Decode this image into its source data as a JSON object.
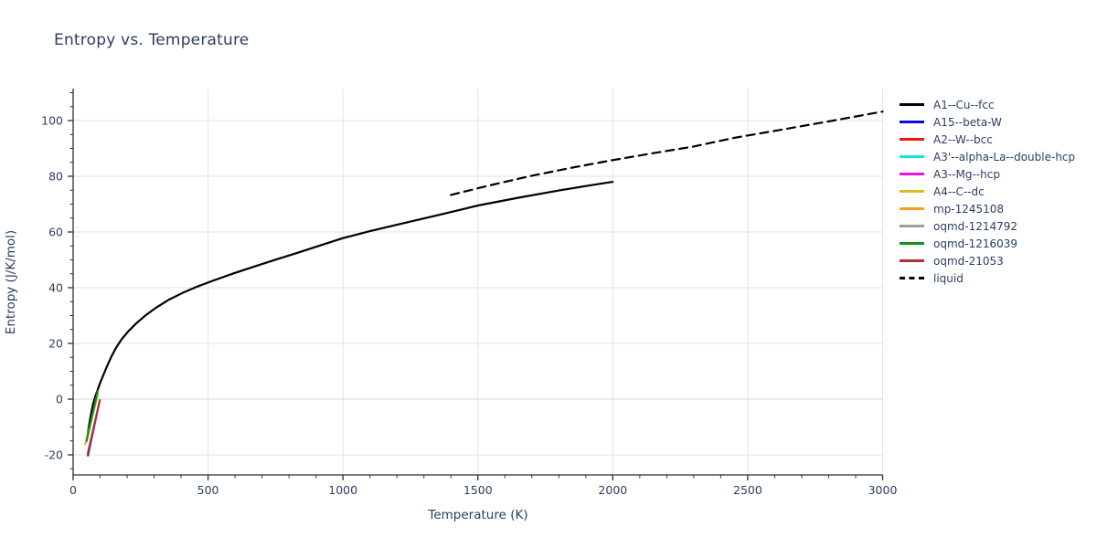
{
  "title": "Entropy vs. Temperature",
  "colors": {
    "text": "#2a3f5f",
    "grid": "#e2e2e2",
    "zeroline": "#d6d6d6",
    "axis_line": "#2f2f2f",
    "background": "#ffffff"
  },
  "axes": {
    "x": {
      "label": "Temperature (K)",
      "major_ticks": [
        0,
        500,
        1000,
        1500,
        2000,
        2500,
        3000
      ],
      "minor_step": 100,
      "range": [
        0,
        3000
      ]
    },
    "y": {
      "label": "Entropy (J/K/mol)",
      "major_ticks": [
        -20,
        0,
        20,
        40,
        60,
        80,
        100
      ],
      "minor_step": 5,
      "minor_range": [
        -25,
        110
      ]
    }
  },
  "chart_data": {
    "type": "line",
    "title": "Entropy vs. Temperature",
    "xlabel": "Temperature (K)",
    "ylabel": "Entropy (J/K/mol)",
    "xlim": [
      0,
      3000
    ],
    "ylim": [
      -27,
      111
    ],
    "grid": true,
    "legend_position": "right",
    "series": [
      {
        "name": "A1--Cu--fcc",
        "color": "#000000",
        "dash": "solid",
        "width": 2.2,
        "points": [
          [
            50,
            -15
          ],
          [
            58,
            -10
          ],
          [
            66,
            -5.5
          ],
          [
            74,
            -1.8
          ],
          [
            82,
            0.9
          ],
          [
            90,
            3.1
          ],
          [
            100,
            5.8
          ],
          [
            112,
            8.7
          ],
          [
            126,
            11.9
          ],
          [
            142,
            15.3
          ],
          [
            160,
            18.6
          ],
          [
            180,
            21.5
          ],
          [
            205,
            24.4
          ],
          [
            235,
            27.3
          ],
          [
            270,
            30.2
          ],
          [
            310,
            33
          ],
          [
            355,
            35.7
          ],
          [
            405,
            38.1
          ],
          [
            460,
            40.4
          ],
          [
            520,
            42.6
          ],
          [
            590,
            45
          ],
          [
            665,
            47.4
          ],
          [
            745,
            49.9
          ],
          [
            830,
            52.5
          ],
          [
            920,
            55.3
          ],
          [
            1000,
            57.8
          ],
          [
            1100,
            60.3
          ],
          [
            1200,
            62.6
          ],
          [
            1350,
            66
          ],
          [
            1500,
            69.5
          ],
          [
            1650,
            72.3
          ],
          [
            1800,
            74.9
          ],
          [
            1900,
            76.5
          ],
          [
            2000,
            78
          ]
        ]
      },
      {
        "name": "A15--beta-W",
        "color": "#0a0ae6",
        "dash": "solid",
        "width": 2,
        "points": [
          [
            55,
            -20.3
          ],
          [
            99,
            -0.4
          ]
        ]
      },
      {
        "name": "A2--W--bcc",
        "color": "#f01414",
        "dash": "solid",
        "width": 2,
        "points": [
          [
            54,
            -19.7
          ],
          [
            98,
            -0.8
          ]
        ]
      },
      {
        "name": "A3'--alpha-La--double-hcp",
        "color": "#00e8f2",
        "dash": "solid",
        "width": 2,
        "points": [
          [
            49,
            -15.4
          ],
          [
            91,
            2.4
          ]
        ]
      },
      {
        "name": "A3--Mg--hcp",
        "color": "#f012e8",
        "dash": "solid",
        "width": 2,
        "points": [
          [
            49.5,
            -15.3
          ],
          [
            91.2,
            2.5
          ]
        ]
      },
      {
        "name": "A4--C--dc",
        "color": "#dfbc1a",
        "dash": "solid",
        "width": 2,
        "points": [
          [
            44,
            -16.2
          ],
          [
            90,
            1
          ]
        ]
      },
      {
        "name": "mp-1245108",
        "color": "#ff9e15",
        "dash": "solid",
        "width": 2,
        "points": [
          [
            48.5,
            -15.4
          ],
          [
            91,
            2.2
          ]
        ]
      },
      {
        "name": "oqmd-1214792",
        "color": "#9d9d9d",
        "dash": "solid",
        "width": 2,
        "points": [
          [
            49,
            -15.1
          ],
          [
            91,
            2.5
          ]
        ]
      },
      {
        "name": "oqmd-1216039",
        "color": "#139413",
        "dash": "solid",
        "width": 2,
        "points": [
          [
            50,
            -14.8
          ],
          [
            91.5,
            3
          ]
        ]
      },
      {
        "name": "oqmd-21053",
        "color": "#b23232",
        "dash": "solid",
        "width": 2,
        "points": [
          [
            54.5,
            -19.4
          ],
          [
            98.2,
            -0.6
          ]
        ]
      },
      {
        "name": "liquid",
        "color": "#000000",
        "dash": "dashed",
        "width": 2.2,
        "points": [
          [
            1400,
            73.3
          ],
          [
            1550,
            76.9
          ],
          [
            1700,
            80.2
          ],
          [
            1850,
            83.1
          ],
          [
            2000,
            85.8
          ],
          [
            2150,
            88.3
          ],
          [
            2300,
            90.7
          ],
          [
            2450,
            93.8
          ],
          [
            2600,
            96.3
          ],
          [
            2800,
            99.7
          ],
          [
            3000,
            103.2
          ]
        ]
      }
    ]
  }
}
